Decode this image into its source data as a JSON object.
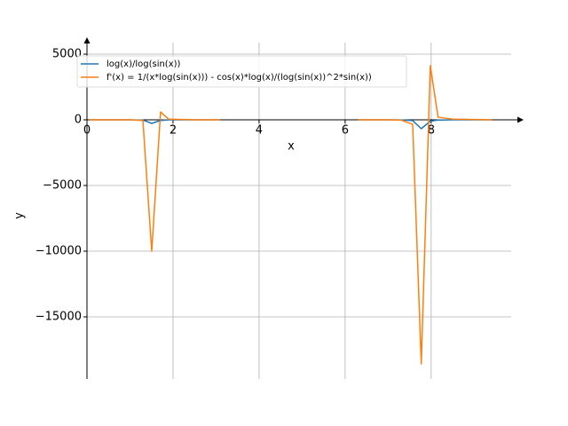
{
  "chart_data": {
    "type": "line",
    "xlabel": "x",
    "ylabel": "y",
    "x": [
      0.05,
      0.5,
      1.0,
      1.3,
      1.505,
      1.71,
      1.9,
      2.5,
      3.1,
      4.71,
      6.3,
      7.0,
      7.3,
      7.57,
      7.77,
      7.98,
      8.16,
      8.5,
      9.42
    ],
    "series": [
      {
        "name": "log(x)/log(sin(x))",
        "color": "#1f77b4",
        "values": [
          0,
          0,
          0,
          -20,
          -270,
          -50,
          0,
          0,
          0,
          null,
          0,
          0,
          -10,
          -60,
          -675,
          -100,
          -20,
          0,
          0
        ]
      },
      {
        "name": "f'(x) = 1/(x*log(sin(x))) - cos(x)*log(x)/(log(sin(x))^2*sin(x))",
        "color": "#ff7f0e",
        "values": [
          0,
          0,
          0,
          -50,
          -10000,
          600,
          50,
          0,
          0,
          null,
          0,
          0,
          -20,
          -340,
          -18580,
          4120,
          200,
          50,
          0
        ]
      }
    ],
    "xlim": [
      0,
      9.86
    ],
    "ylim": [
      -19730,
      5880
    ],
    "xticks": [
      0,
      2,
      4,
      6,
      8
    ],
    "yticks": [
      {
        "value": -15000,
        "label": "−15000"
      },
      {
        "value": -10000,
        "label": "−10000"
      },
      {
        "value": -5000,
        "label": "−5000"
      },
      0,
      5000
    ],
    "grid": true,
    "legend": "upper left"
  }
}
